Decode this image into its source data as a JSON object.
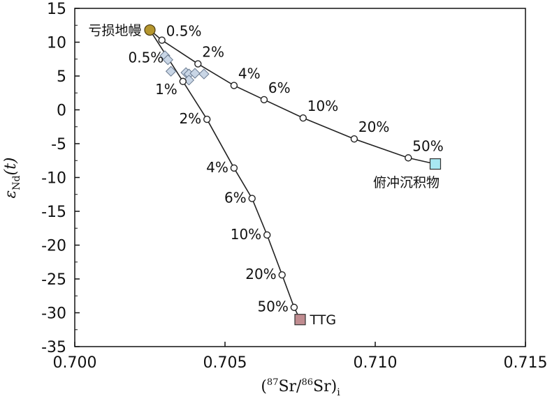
{
  "chart_data": {
    "type": "scatter",
    "xlabel": "(87Sr/86Sr)i",
    "xlabel_parts": {
      "open": "(",
      "sup1": "87",
      "mid": "Sr/",
      "sup2": "86",
      "close": "Sr)",
      "sub": "i"
    },
    "ylabel": "εNd(t)",
    "ylabel_parts": {
      "eps": "ε",
      "sub": "Nd",
      "rest": "(t)"
    },
    "xlim": [
      0.7,
      0.715
    ],
    "ylim": [
      -35,
      15
    ],
    "xticks": [
      {
        "value": 0.7,
        "label": "0.700"
      },
      {
        "value": 0.705,
        "label": "0.705"
      },
      {
        "value": 0.71,
        "label": "0.710"
      },
      {
        "value": 0.715,
        "label": "0.715"
      }
    ],
    "yticks": [
      {
        "value": 15,
        "label": "15"
      },
      {
        "value": 10,
        "label": "10"
      },
      {
        "value": 5,
        "label": "5"
      },
      {
        "value": 0,
        "label": "0"
      },
      {
        "value": -5,
        "label": "-5"
      },
      {
        "value": -10,
        "label": "-10"
      },
      {
        "value": -15,
        "label": "-15"
      },
      {
        "value": -20,
        "label": "-20"
      },
      {
        "value": -25,
        "label": "-25"
      },
      {
        "value": -30,
        "label": "-30"
      },
      {
        "value": -35,
        "label": "-35"
      }
    ],
    "endmembers": [
      {
        "name": "亏损地幔",
        "x": 0.7025,
        "y": 11.8,
        "color": "#b5962e",
        "shape": "circle"
      },
      {
        "name": "俯冲沉积物",
        "x": 0.712,
        "y": -8.0,
        "color": "#a8e8f2",
        "shape": "square"
      },
      {
        "name": "TTG",
        "x": 0.7075,
        "y": -31.0,
        "color": "#c08c90",
        "shape": "square"
      }
    ],
    "series": [
      {
        "name": "亏损地幔-俯冲沉积物",
        "points": [
          {
            "x": 0.7025,
            "y": 11.8,
            "label": ""
          },
          {
            "x": 0.7029,
            "y": 10.3,
            "label": "0.5%"
          },
          {
            "x": 0.7041,
            "y": 6.8,
            "label": "2%"
          },
          {
            "x": 0.7053,
            "y": 3.6,
            "label": "4%"
          },
          {
            "x": 0.7063,
            "y": 1.5,
            "label": "6%"
          },
          {
            "x": 0.7076,
            "y": -1.2,
            "label": "10%"
          },
          {
            "x": 0.7093,
            "y": -4.3,
            "label": "20%"
          },
          {
            "x": 0.7111,
            "y": -7.1,
            "label": "50%"
          },
          {
            "x": 0.712,
            "y": -8.0,
            "label": ""
          }
        ]
      },
      {
        "name": "亏损地幔-TTG",
        "points": [
          {
            "x": 0.7025,
            "y": 11.8,
            "label": ""
          },
          {
            "x": 0.7036,
            "y": 4.2,
            "label": "1%"
          },
          {
            "x": 0.7044,
            "y": -1.4,
            "label": "2%"
          },
          {
            "x": 0.7053,
            "y": -8.6,
            "label": "4%"
          },
          {
            "x": 0.7059,
            "y": -13.1,
            "label": "6%"
          },
          {
            "x": 0.7064,
            "y": -18.5,
            "label": "10%"
          },
          {
            "x": 0.7069,
            "y": -24.4,
            "label": "20%"
          },
          {
            "x": 0.7073,
            "y": -29.2,
            "label": "50%"
          },
          {
            "x": 0.7075,
            "y": -31.0,
            "label": ""
          }
        ]
      }
    ],
    "extra_labels": [
      {
        "text": "0.5%",
        "anchor_x": 0.7031,
        "anchor_y": 6.8
      }
    ],
    "samples": [
      {
        "x": 0.703,
        "y": 8.0
      },
      {
        "x": 0.7031,
        "y": 7.4
      },
      {
        "x": 0.7032,
        "y": 5.7
      },
      {
        "x": 0.7037,
        "y": 5.5
      },
      {
        "x": 0.7038,
        "y": 5.3
      },
      {
        "x": 0.7038,
        "y": 4.4
      },
      {
        "x": 0.704,
        "y": 5.4
      },
      {
        "x": 0.7043,
        "y": 5.3
      }
    ]
  },
  "colors": {
    "axis": "#111111",
    "line": "#222222",
    "sample_fill": "#c9d6e6",
    "sample_stroke": "#6a7a90"
  }
}
